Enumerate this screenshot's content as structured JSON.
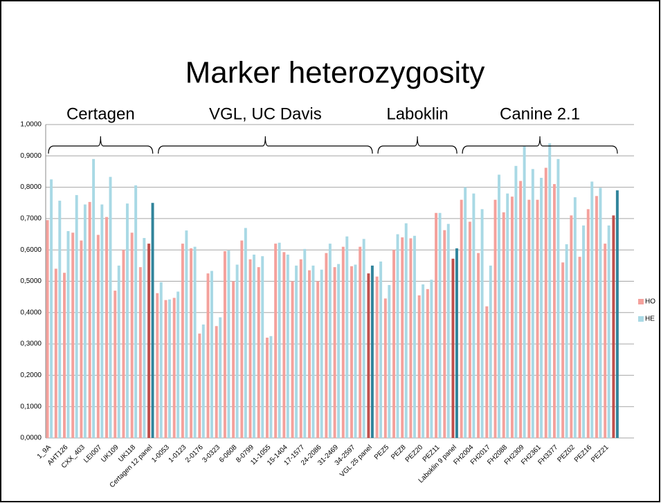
{
  "chart_data": {
    "type": "bar",
    "title": "Marker heterozygosity",
    "categories": [
      "1_9A",
      null,
      "AHT126",
      null,
      "CXX_403",
      null,
      "LEI007",
      null,
      "UK109",
      null,
      "UK118",
      null,
      "Certagen 12 panel",
      null,
      "1-0053",
      null,
      "1-0123",
      null,
      "2-0176",
      null,
      "3-0323",
      null,
      "6-0608",
      null,
      "8-0799",
      null,
      "11-1055",
      null,
      "15-1404",
      null,
      "17-1577",
      null,
      "24-2086",
      null,
      "31-2469",
      null,
      "34-2597",
      null,
      "VGL 25 panel",
      null,
      "PEZ5",
      null,
      "PEZ8",
      null,
      "PEZ20",
      null,
      "PEZ11",
      null,
      "Laboklin 9 panel",
      null,
      "FH2004",
      null,
      "FH2017",
      null,
      "FH2088",
      null,
      "FH2309",
      null,
      "FH2361",
      null,
      "FH3377",
      null,
      "PEZ02",
      null,
      "PEZ16",
      null,
      "PEZ21",
      null
    ],
    "series": [
      {
        "name": "HO",
        "color": "#f4a19c",
        "highlight_color": "#c0504d",
        "values": [
          0.695,
          0.54,
          0.527,
          0.655,
          0.63,
          0.753,
          0.648,
          0.705,
          0.47,
          0.6,
          0.655,
          0.545,
          0.62,
          0.462,
          0.44,
          0.447,
          0.62,
          0.605,
          0.333,
          0.525,
          0.357,
          0.596,
          0.5,
          0.63,
          0.57,
          0.545,
          0.32,
          0.62,
          0.593,
          0.5,
          0.57,
          0.535,
          0.5,
          0.59,
          0.545,
          0.61,
          0.548,
          0.61,
          0.525,
          0.515,
          0.445,
          0.6,
          0.64,
          0.637,
          0.455,
          0.475,
          0.718,
          0.663,
          0.572,
          0.76,
          0.69,
          0.59,
          0.42,
          0.76,
          0.72,
          0.77,
          0.82,
          0.76,
          0.76,
          0.862,
          0.81,
          0.56,
          0.71,
          0.578,
          0.73,
          0.772,
          0.62,
          0.71
        ]
      },
      {
        "name": "HE",
        "color": "#a9d9e5",
        "highlight_color": "#31849b",
        "values": [
          0.825,
          0.757,
          0.66,
          0.775,
          0.745,
          0.89,
          0.745,
          0.833,
          0.55,
          0.748,
          0.806,
          0.638,
          0.75,
          0.497,
          0.442,
          0.467,
          0.662,
          0.61,
          0.362,
          0.533,
          0.385,
          0.598,
          0.553,
          0.67,
          0.585,
          0.58,
          0.325,
          0.623,
          0.585,
          0.55,
          0.603,
          0.55,
          0.537,
          0.62,
          0.555,
          0.643,
          0.553,
          0.635,
          0.55,
          0.563,
          0.488,
          0.65,
          0.685,
          0.645,
          0.49,
          0.505,
          0.718,
          0.683,
          0.605,
          0.8,
          0.78,
          0.73,
          0.55,
          0.84,
          0.78,
          0.868,
          0.93,
          0.858,
          0.83,
          0.94,
          0.89,
          0.618,
          0.768,
          0.678,
          0.818,
          0.798,
          0.678,
          0.79
        ]
      }
    ],
    "highlight_categories": [
      12,
      38,
      48,
      67
    ],
    "groups": [
      {
        "label": "Certagen",
        "start": 0,
        "end": 12
      },
      {
        "label": "VGL, UC Davis",
        "start": 13,
        "end": 38
      },
      {
        "label": "Laboklin",
        "start": 39,
        "end": 48
      },
      {
        "label": "Canine 2.1",
        "start": 49,
        "end": 67
      }
    ],
    "ylim": [
      0,
      1
    ],
    "yticks": [
      {
        "value": 0,
        "label": "0,0000"
      },
      {
        "value": 0.1,
        "label": "0,1000"
      },
      {
        "value": 0.2,
        "label": "0,2000"
      },
      {
        "value": 0.3,
        "label": "0,3000"
      },
      {
        "value": 0.4,
        "label": "0,4000"
      },
      {
        "value": 0.5,
        "label": "0,5000"
      },
      {
        "value": 0.6,
        "label": "0,6000"
      },
      {
        "value": 0.7,
        "label": "0,7000"
      },
      {
        "value": 0.8,
        "label": "0,8000"
      },
      {
        "value": 0.9,
        "label": "0,9000"
      },
      {
        "value": 1,
        "label": "1,0000"
      }
    ],
    "grid": true,
    "legend": "right"
  }
}
